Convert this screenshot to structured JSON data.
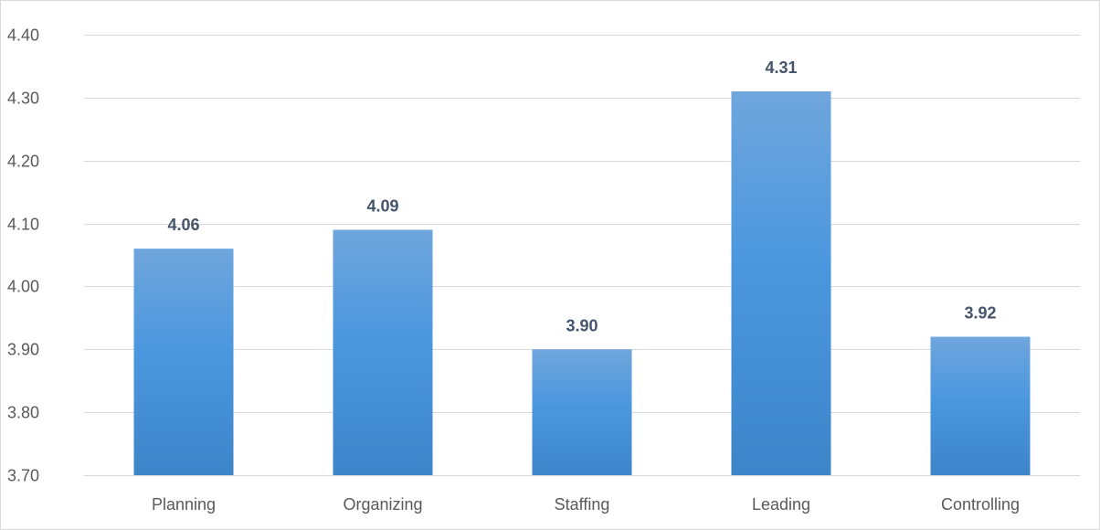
{
  "chart_data": {
    "type": "bar",
    "categories": [
      "Planning",
      "Organizing",
      "Staffing",
      "Leading",
      "Controlling"
    ],
    "values": [
      4.06,
      4.09,
      3.9,
      4.31,
      3.92
    ],
    "value_labels": [
      "4.06",
      "4.09",
      "3.90",
      "4.31",
      "3.92"
    ],
    "ylim": [
      3.7,
      4.4
    ],
    "yticks": [
      3.7,
      3.8,
      3.9,
      4.0,
      4.1,
      4.2,
      4.3,
      4.4
    ],
    "ytick_labels": [
      "3.70",
      "3.80",
      "3.90",
      "4.00",
      "4.10",
      "4.20",
      "4.30",
      "4.40"
    ],
    "title": "",
    "xlabel": "",
    "ylabel": "",
    "grid": true,
    "legend": "none",
    "colors": {
      "bar_top": "#6fa6dd",
      "bar_mid": "#4b97de",
      "bar_bottom": "#3d85c9",
      "gridline": "#d9d9d9",
      "data_label": "#44546a",
      "tick_label": "#595959"
    }
  }
}
